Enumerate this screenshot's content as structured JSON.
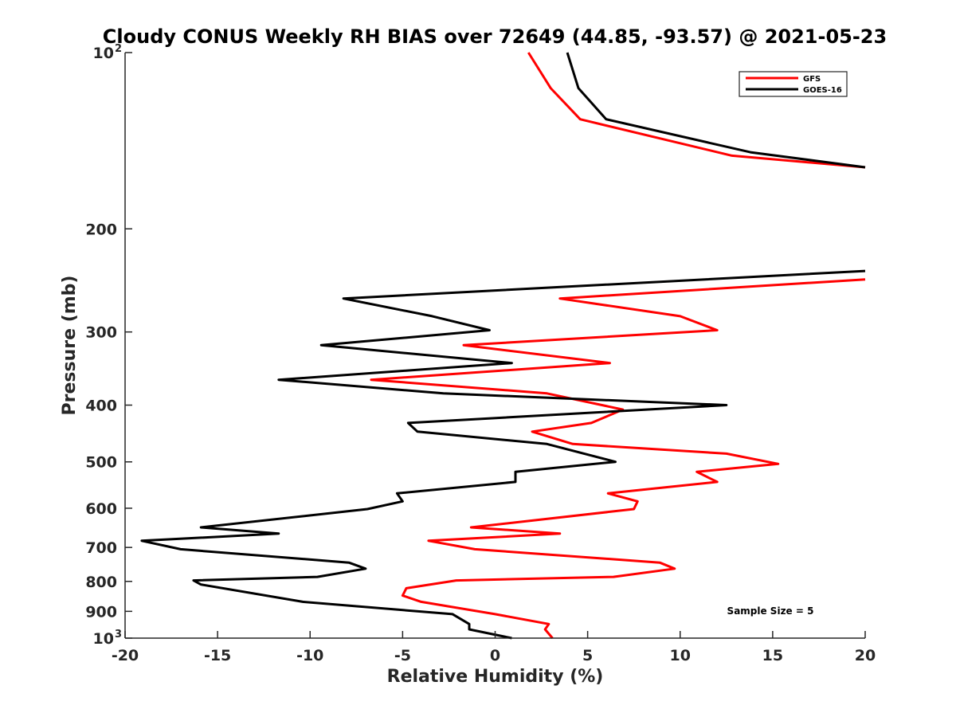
{
  "chart_data": {
    "type": "line",
    "title": "Cloudy CONUS Weekly RH BIAS over 72649 (44.85, -93.57) @ 2021-05-23",
    "xlabel": "Relative Humidity (%)",
    "ylabel": "Pressure (mb)",
    "xlim": [
      -20,
      20
    ],
    "ylim": [
      100,
      1000
    ],
    "yscale": "log",
    "y_reversed": true,
    "grid": false,
    "x_ticks": [
      "-20",
      "-15",
      "-10",
      "-5",
      "0",
      "5",
      "10",
      "15",
      "20"
    ],
    "y_ticks": [
      {
        "value": 100,
        "label": "10",
        "sup": "2"
      },
      {
        "value": 200,
        "label": "200"
      },
      {
        "value": 300,
        "label": "300"
      },
      {
        "value": 400,
        "label": "400"
      },
      {
        "value": 500,
        "label": "500"
      },
      {
        "value": 600,
        "label": "600"
      },
      {
        "value": 700,
        "label": "700"
      },
      {
        "value": 800,
        "label": "800"
      },
      {
        "value": 900,
        "label": "900"
      },
      {
        "value": 1000,
        "label": "10",
        "sup": "3"
      }
    ],
    "legend": {
      "placement": "top-right"
    },
    "annotation": "Sample Size = 5",
    "series": [
      {
        "name": "GFS",
        "color": "#ff0000",
        "segments": [
          [
            [
              1.8,
              100
            ],
            [
              3.0,
              115
            ],
            [
              4.6,
              130
            ],
            [
              12.8,
              150
            ],
            [
              20,
              157
            ]
          ],
          [
            [
              20,
              244
            ],
            [
              3.5,
              263
            ],
            [
              10.0,
              282
            ],
            [
              12.0,
              298
            ],
            [
              -1.7,
              316
            ],
            [
              6.2,
              339
            ],
            [
              -6.7,
              362
            ],
            [
              2.8,
              382
            ],
            [
              6.9,
              407
            ],
            [
              5.2,
              429
            ],
            [
              2.0,
              444
            ],
            [
              4.2,
              466
            ],
            [
              12.5,
              484
            ],
            [
              15.3,
              504
            ],
            [
              10.9,
              520
            ],
            [
              12.0,
              541
            ],
            [
              6.1,
              566
            ],
            [
              7.7,
              584
            ],
            [
              7.5,
              602
            ],
            [
              -1.3,
              647
            ],
            [
              3.5,
              663
            ],
            [
              -3.6,
              682
            ],
            [
              -1.1,
              705
            ],
            [
              8.9,
              743
            ],
            [
              9.7,
              761
            ],
            [
              6.4,
              786
            ],
            [
              -2.1,
              797
            ],
            [
              -4.8,
              822
            ],
            [
              -5.0,
              846
            ],
            [
              -4.0,
              867
            ],
            [
              0.0,
              910
            ],
            [
              2.9,
              946
            ],
            [
              2.7,
              966
            ],
            [
              3.1,
              1000
            ]
          ]
        ]
      },
      {
        "name": "GOES-16",
        "color": "#000000",
        "segments": [
          [
            [
              3.9,
              100
            ],
            [
              4.5,
              115
            ],
            [
              6.0,
              130
            ],
            [
              13.8,
              148
            ],
            [
              20,
              157
            ]
          ],
          [
            [
              20,
              236
            ],
            [
              -8.2,
              263
            ],
            [
              -3.4,
              282
            ],
            [
              -0.3,
              298
            ],
            [
              -9.4,
              316
            ],
            [
              0.9,
              339
            ],
            [
              -11.7,
              362
            ],
            [
              -2.8,
              382
            ],
            [
              12.5,
              400
            ],
            [
              -4.7,
              429
            ],
            [
              -4.2,
              444
            ],
            [
              2.8,
              466
            ],
            [
              6.5,
              500
            ],
            [
              1.1,
              520
            ],
            [
              1.1,
              541
            ],
            [
              -5.3,
              566
            ],
            [
              -5.0,
              584
            ],
            [
              -6.9,
              602
            ],
            [
              -15.9,
              647
            ],
            [
              -11.7,
              663
            ],
            [
              -19.1,
              682
            ],
            [
              -17.0,
              705
            ],
            [
              -7.9,
              743
            ],
            [
              -7.0,
              761
            ],
            [
              -9.6,
              786
            ],
            [
              -16.3,
              797
            ],
            [
              -15.9,
              810
            ],
            [
              -10.4,
              867
            ],
            [
              -2.3,
              910
            ],
            [
              -1.4,
              946
            ],
            [
              -1.4,
              966
            ],
            [
              0.9,
              1000
            ]
          ]
        ]
      }
    ]
  }
}
